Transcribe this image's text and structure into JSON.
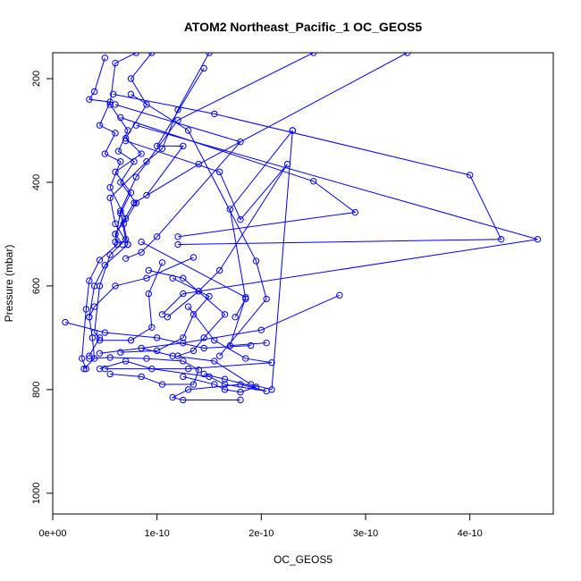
{
  "chart_data": {
    "type": "line",
    "title": "ATOM2 Northeast_Pacific_1 OC_GEOS5",
    "xlabel": "OC_GEOS5",
    "ylabel": "Pressure (mbar)",
    "xlim": [
      0,
      4.8e-10
    ],
    "ylim": [
      1040,
      150
    ],
    "y_inverted": true,
    "x_ticks": [
      0,
      1e-10,
      2e-10,
      3e-10,
      4e-10
    ],
    "x_tick_labels": [
      "0e+00",
      "1e-10",
      "2e-10",
      "3e-10",
      "4e-10"
    ],
    "y_ticks": [
      200,
      400,
      600,
      800,
      1000
    ],
    "y_tick_labels": [
      "200",
      "400",
      "600",
      "800",
      "1000"
    ],
    "series_color": "#0000ff",
    "markers": "open-circle",
    "grid": false,
    "series": [
      {
        "points": [
          [
            1.8e-10,
            820
          ],
          [
            1.25e-10,
            820
          ],
          [
            1.15e-10,
            815
          ],
          [
            1.3e-10,
            800
          ],
          [
            1.8e-10,
            790
          ],
          [
            2.05e-10,
            803
          ],
          [
            1.65e-10,
            790
          ],
          [
            1.5e-10,
            775
          ],
          [
            9.5e-11,
            760
          ],
          [
            7e-11,
            745
          ],
          [
            4.5e-11,
            760
          ]
        ]
      },
      {
        "points": [
          [
            5e-11,
            160
          ],
          [
            4e-11,
            225
          ],
          [
            3.5e-11,
            240
          ],
          [
            5.5e-11,
            245
          ],
          [
            4.5e-11,
            290
          ],
          [
            6e-11,
            305
          ],
          [
            5e-11,
            345
          ],
          [
            6.5e-11,
            360
          ],
          [
            5.5e-11,
            410
          ],
          [
            7e-11,
            470
          ],
          [
            6e-11,
            500
          ],
          [
            6.2e-11,
            520
          ],
          [
            4.5e-11,
            550
          ],
          [
            3.5e-11,
            590
          ],
          [
            3.2e-11,
            645
          ],
          [
            2.8e-11,
            740
          ],
          [
            3.2e-11,
            760
          ]
        ]
      },
      {
        "points": [
          [
            8e-11,
            150
          ],
          [
            6e-11,
            170
          ],
          [
            5.5e-11,
            250
          ],
          [
            7.2e-11,
            300
          ],
          [
            6.3e-11,
            340
          ],
          [
            7.8e-11,
            360
          ],
          [
            6.5e-11,
            400
          ],
          [
            8e-11,
            440
          ],
          [
            6.8e-11,
            480
          ],
          [
            7.2e-11,
            520
          ],
          [
            5e-11,
            560
          ],
          [
            4e-11,
            600
          ],
          [
            3.5e-11,
            660
          ],
          [
            3.8e-11,
            700
          ],
          [
            4e-11,
            740
          ],
          [
            3e-11,
            760
          ]
        ]
      },
      {
        "points": [
          [
            9.5e-11,
            150
          ],
          [
            7.5e-11,
            200
          ],
          [
            9e-11,
            250
          ],
          [
            7e-11,
            315
          ],
          [
            8.5e-11,
            345
          ],
          [
            6e-11,
            380
          ],
          [
            7.5e-11,
            420
          ],
          [
            6.5e-11,
            460
          ],
          [
            7e-11,
            510
          ],
          [
            5.5e-11,
            540
          ],
          [
            4.5e-11,
            600
          ],
          [
            4e-11,
            690
          ],
          [
            4.5e-11,
            700
          ],
          [
            3.5e-11,
            735
          ]
        ]
      },
      {
        "points": [
          [
            1.5e-10,
            150
          ],
          [
            1.2e-10,
            260
          ],
          [
            1.05e-10,
            335
          ],
          [
            9e-11,
            360
          ],
          [
            5.5e-11,
            430
          ],
          [
            6e-11,
            480
          ],
          [
            7.2e-11,
            520
          ]
        ]
      },
      {
        "points": [
          [
            3.4e-10,
            150
          ],
          [
            1.4e-10,
            365
          ],
          [
            7.8e-11,
            440
          ],
          [
            6e-11,
            500
          ],
          [
            6.7e-11,
            520
          ]
        ]
      },
      {
        "points": [
          [
            2.5e-10,
            150
          ],
          [
            1.2e-10,
            280
          ],
          [
            8e-11,
            390
          ],
          [
            6.5e-11,
            455
          ],
          [
            6e-11,
            515
          ]
        ]
      },
      {
        "points": [
          [
            5.8e-11,
            230
          ],
          [
            1.55e-10,
            268
          ],
          [
            4e-10,
            386
          ],
          [
            4.3e-10,
            510
          ],
          [
            1.2e-10,
            520
          ]
        ]
      },
      {
        "points": [
          [
            6e-11,
            250
          ],
          [
            1.8e-10,
            322
          ],
          [
            1e-10,
            505
          ],
          [
            8.5e-11,
            535
          ],
          [
            7e-11,
            547
          ]
        ]
      },
      {
        "points": [
          [
            6.5e-11,
            275
          ],
          [
            2.5e-10,
            398
          ],
          [
            2.9e-10,
            458
          ],
          [
            1.2e-10,
            505
          ]
        ]
      },
      {
        "points": [
          [
            8e-11,
            290
          ],
          [
            4.65e-10,
            510
          ],
          [
            1.25e-10,
            615
          ],
          [
            1.05e-10,
            655
          ]
        ]
      },
      {
        "points": [
          [
            7e-11,
            320
          ],
          [
            1.6e-10,
            380
          ],
          [
            1.8e-10,
            472
          ],
          [
            2.25e-10,
            365
          ],
          [
            1.6e-10,
            570
          ],
          [
            1.4e-10,
            610
          ],
          [
            1.1e-10,
            660
          ]
        ]
      },
      {
        "points": [
          [
            7.5e-11,
            230
          ],
          [
            1.3e-10,
            300
          ],
          [
            1.95e-10,
            552
          ],
          [
            2.05e-10,
            625
          ],
          [
            1.6e-10,
            735
          ]
        ]
      },
      {
        "points": [
          [
            1.45e-10,
            180
          ],
          [
            1e-10,
            330
          ],
          [
            1.25e-10,
            330
          ],
          [
            9e-11,
            425
          ]
        ]
      },
      {
        "points": [
          [
            2.3e-10,
            300
          ],
          [
            1.7e-10,
            452
          ],
          [
            1.85e-10,
            625
          ],
          [
            1.75e-10,
            660
          ]
        ]
      },
      {
        "points": [
          [
            8.5e-11,
            515
          ],
          [
            1.85e-10,
            622
          ],
          [
            1.7e-10,
            715
          ],
          [
            2.05e-10,
            710
          ]
        ]
      },
      {
        "points": [
          [
            1.35e-10,
            545
          ],
          [
            9e-11,
            585
          ],
          [
            6e-11,
            600
          ],
          [
            4e-11,
            640
          ],
          [
            3.5e-11,
            660
          ]
        ]
      },
      {
        "points": [
          [
            2.75e-10,
            618
          ],
          [
            2e-10,
            685
          ],
          [
            1.25e-10,
            710
          ],
          [
            4.5e-11,
            730
          ]
        ]
      },
      {
        "points": [
          [
            1.2e-11,
            670
          ],
          [
            5e-11,
            690
          ],
          [
            1e-10,
            700
          ],
          [
            1.45e-10,
            720
          ],
          [
            1.9e-10,
            715
          ]
        ]
      },
      {
        "points": [
          [
            1.15e-10,
            585
          ],
          [
            1.5e-10,
            620
          ],
          [
            1.35e-10,
            655
          ],
          [
            1.25e-10,
            700
          ],
          [
            1e-10,
            725
          ],
          [
            6.5e-11,
            728
          ]
        ]
      },
      {
        "points": [
          [
            1.05e-10,
            555
          ],
          [
            9.2e-11,
            615
          ],
          [
            9.5e-11,
            680
          ],
          [
            7.5e-11,
            705
          ],
          [
            4.5e-11,
            705
          ]
        ]
      },
      {
        "points": [
          [
            9.2e-11,
            570
          ],
          [
            1.25e-10,
            585
          ],
          [
            1.65e-10,
            655
          ],
          [
            1.45e-10,
            700
          ],
          [
            1.35e-10,
            725
          ],
          [
            1.2e-10,
            735
          ]
        ]
      },
      {
        "points": [
          [
            1.3e-10,
            640
          ],
          [
            1.55e-10,
            705
          ],
          [
            1.85e-10,
            740
          ],
          [
            2.1e-10,
            748
          ],
          [
            1.3e-10,
            760
          ],
          [
            5e-11,
            760
          ]
        ]
      },
      {
        "points": [
          [
            8.5e-11,
            720
          ],
          [
            1.15e-10,
            735
          ],
          [
            1.55e-10,
            745
          ],
          [
            1.9e-10,
            790
          ],
          [
            2.1e-10,
            800
          ],
          [
            2.3e-10,
            300
          ]
        ]
      },
      {
        "points": [
          [
            3.5e-11,
            740
          ],
          [
            5.5e-11,
            738
          ],
          [
            9e-11,
            740
          ],
          [
            1.25e-10,
            745
          ],
          [
            1.4e-10,
            762
          ],
          [
            1.35e-10,
            790
          ],
          [
            1.05e-10,
            790
          ],
          [
            8.5e-11,
            775
          ],
          [
            5.5e-11,
            770
          ]
        ]
      },
      {
        "points": [
          [
            1.25e-10,
            775
          ],
          [
            1.55e-10,
            790
          ],
          [
            1.65e-10,
            800
          ],
          [
            1.8e-10,
            805
          ],
          [
            1.95e-10,
            795
          ],
          [
            1.65e-10,
            780
          ],
          [
            1.45e-10,
            770
          ]
        ]
      }
    ]
  }
}
